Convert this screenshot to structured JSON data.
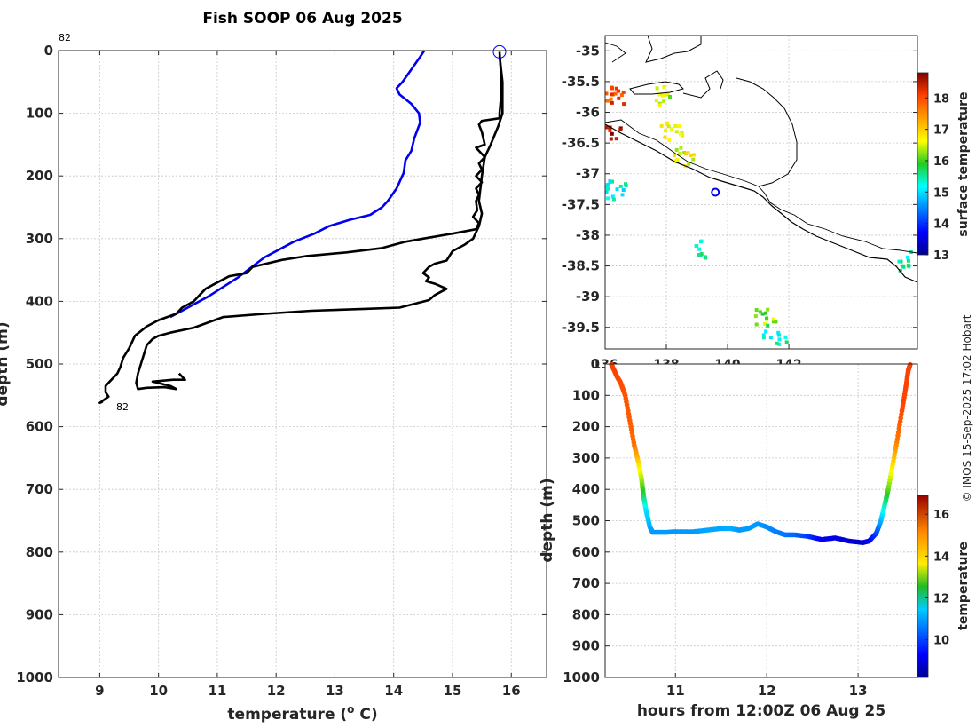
{
  "title": "Fish SOOP 06 Aug 2025",
  "credit": "© IMOS 15-Sep-2025 17:02 Hobart",
  "colors": {
    "blue_profile": "#0000ee",
    "black_profile": "#000000",
    "coast": "#000000",
    "marker": "#0000ee"
  },
  "chart_data": [
    {
      "type": "line",
      "name": "profile",
      "xlabel": "temperature (o C)",
      "xlabel_main": "temperature (",
      "xlabel_sup": "o",
      "xlabel_end": " C)",
      "ylabel": "depth (m)",
      "xlim": [
        8.3,
        16.6
      ],
      "ylim": [
        0,
        1000
      ],
      "y_reversed": true,
      "xticks": [
        9,
        10,
        11,
        12,
        13,
        14,
        15,
        16
      ],
      "yticks": [
        0,
        100,
        200,
        300,
        400,
        500,
        600,
        700,
        800,
        900,
        1000
      ],
      "annotations": [
        {
          "text": "82",
          "x": 8.3,
          "y": -18
        },
        {
          "text": "82",
          "x": 9.2,
          "y": 566
        }
      ],
      "start_marker": {
        "x": 15.8,
        "y": 2
      },
      "series": [
        {
          "name": "blue profile",
          "color": "#0000ee",
          "points": [
            [
              14.52,
              0
            ],
            [
              14.45,
              10
            ],
            [
              14.3,
              30
            ],
            [
              14.15,
              50
            ],
            [
              14.05,
              60
            ],
            [
              14.1,
              70
            ],
            [
              14.3,
              85
            ],
            [
              14.43,
              100
            ],
            [
              14.45,
              115
            ],
            [
              14.35,
              140
            ],
            [
              14.3,
              160
            ],
            [
              14.2,
              175
            ],
            [
              14.17,
              195
            ],
            [
              14.05,
              220
            ],
            [
              13.9,
              240
            ],
            [
              13.8,
              250
            ],
            [
              13.6,
              262
            ],
            [
              13.25,
              270
            ],
            [
              12.9,
              280
            ],
            [
              12.65,
              292
            ],
            [
              12.3,
              305
            ],
            [
              11.8,
              330
            ],
            [
              11.35,
              362
            ],
            [
              10.85,
              392
            ],
            [
              10.2,
              425
            ]
          ]
        },
        {
          "name": "black profile",
          "color": "#000000",
          "points": [
            [
              15.8,
              2
            ],
            [
              15.82,
              30
            ],
            [
              15.82,
              80
            ],
            [
              15.8,
              100
            ],
            [
              15.8,
              108
            ],
            [
              15.5,
              112
            ],
            [
              15.45,
              118
            ],
            [
              15.5,
              130
            ],
            [
              15.55,
              150
            ],
            [
              15.4,
              155
            ],
            [
              15.55,
              170
            ],
            [
              15.45,
              180
            ],
            [
              15.5,
              190
            ],
            [
              15.4,
              200
            ],
            [
              15.5,
              210
            ],
            [
              15.4,
              220
            ],
            [
              15.45,
              230
            ],
            [
              15.4,
              240
            ],
            [
              15.42,
              255
            ],
            [
              15.35,
              265
            ],
            [
              15.45,
              275
            ],
            [
              15.4,
              285
            ],
            [
              15.0,
              292
            ],
            [
              14.5,
              300
            ],
            [
              14.2,
              305
            ],
            [
              13.8,
              315
            ],
            [
              13.2,
              322
            ],
            [
              12.5,
              328
            ],
            [
              12.1,
              334
            ],
            [
              11.6,
              345
            ],
            [
              11.5,
              355
            ],
            [
              11.2,
              360
            ],
            [
              11.0,
              370
            ],
            [
              10.8,
              380
            ],
            [
              10.7,
              390
            ],
            [
              10.6,
              400
            ],
            [
              10.4,
              410
            ],
            [
              10.3,
              420
            ],
            [
              10.0,
              430
            ],
            [
              9.8,
              440
            ],
            [
              9.6,
              455
            ],
            [
              9.55,
              465
            ],
            [
              9.5,
              475
            ],
            [
              9.4,
              490
            ],
            [
              9.35,
              505
            ],
            [
              9.3,
              515
            ],
            [
              9.2,
              525
            ],
            [
              9.1,
              535
            ],
            [
              9.1,
              545
            ],
            [
              9.15,
              552
            ],
            [
              9.0,
              562
            ],
            [
              9.05,
              560
            ]
          ]
        },
        {
          "name": "black profile 2",
          "color": "#000000",
          "points": [
            [
              15.8,
              8
            ],
            [
              15.85,
              50
            ],
            [
              15.85,
              100
            ],
            [
              15.78,
              120
            ],
            [
              15.65,
              150
            ],
            [
              15.55,
              170
            ],
            [
              15.5,
              200
            ],
            [
              15.45,
              240
            ],
            [
              15.5,
              260
            ],
            [
              15.45,
              280
            ],
            [
              15.35,
              300
            ],
            [
              15.2,
              310
            ],
            [
              15.0,
              320
            ],
            [
              14.9,
              335
            ],
            [
              14.7,
              340
            ],
            [
              14.6,
              345
            ],
            [
              14.5,
              355
            ],
            [
              14.6,
              362
            ],
            [
              14.55,
              368
            ],
            [
              14.7,
              372
            ],
            [
              14.9,
              380
            ],
            [
              14.7,
              390
            ],
            [
              14.6,
              398
            ],
            [
              14.1,
              410
            ],
            [
              13.5,
              412
            ],
            [
              12.6,
              415
            ],
            [
              11.8,
              420
            ],
            [
              11.1,
              425
            ],
            [
              10.6,
              442
            ],
            [
              10.2,
              450
            ],
            [
              10.0,
              455
            ],
            [
              9.9,
              460
            ],
            [
              9.8,
              470
            ],
            [
              9.75,
              485
            ],
            [
              9.7,
              500
            ],
            [
              9.65,
              515
            ],
            [
              9.62,
              530
            ],
            [
              9.65,
              540
            ],
            [
              9.8,
              538
            ],
            [
              10.1,
              537
            ],
            [
              10.3,
              540
            ],
            [
              10.2,
              535
            ],
            [
              9.9,
              528
            ],
            [
              10.25,
              525
            ],
            [
              10.45,
              525
            ],
            [
              10.35,
              515
            ]
          ]
        }
      ]
    },
    {
      "type": "heatmap",
      "name": "surface temperature map",
      "colorbar_label": "surface temperature",
      "colorbar_range": [
        13,
        18.8
      ],
      "colorbar_ticks": [
        13,
        14,
        15,
        16,
        17,
        18
      ],
      "xlim": [
        136,
        146.2
      ],
      "ylim": [
        -39.85,
        -34.75
      ],
      "xticks": [
        136,
        138,
        140,
        142
      ],
      "xtick_labels": [
        "136",
        "138",
        "140",
        "142"
      ],
      "yticks": [
        -35,
        -35.5,
        -36,
        -36.5,
        -37,
        -37.5,
        -38,
        -38.5,
        -39,
        -39.5
      ],
      "ytick_labels": [
        "-35",
        "-35.5",
        "-36",
        "-36.5",
        "-37",
        "-37.5",
        "-38",
        "-38.5",
        "-39",
        "-39.5"
      ],
      "marker": {
        "lon": 139.6,
        "lat": -37.3
      },
      "patches": [
        {
          "lon": 136.1,
          "lat": -36.35,
          "value": 18.6
        },
        {
          "lon": 136.2,
          "lat": -35.7,
          "value": 18.0
        },
        {
          "lon": 136.35,
          "lat": -37.25,
          "value": 15.3
        },
        {
          "lon": 137.7,
          "lat": -35.7,
          "value": 16.4
        },
        {
          "lon": 138.1,
          "lat": -36.3,
          "value": 16.8
        },
        {
          "lon": 138.5,
          "lat": -36.7,
          "value": 16.6
        },
        {
          "lon": 141.2,
          "lat": -39.3,
          "value": 16.2
        },
        {
          "lon": 141.5,
          "lat": -39.6,
          "value": 15.4
        },
        {
          "lon": 139.2,
          "lat": -38.2,
          "value": 15.6
        },
        {
          "lon": 145.9,
          "lat": -38.4,
          "value": 15.5
        }
      ]
    },
    {
      "type": "scatter",
      "name": "depth vs time",
      "xlabel": "hours from 12:00Z 06 Aug 25",
      "ylabel": "depth (m)",
      "colorbar_label": "temperature",
      "colorbar_range": [
        8.2,
        16.9
      ],
      "colorbar_ticks": [
        10,
        12,
        14,
        16
      ],
      "xlim": [
        10.23,
        13.65
      ],
      "ylim": [
        0,
        1000
      ],
      "y_reversed": true,
      "xticks": [
        11,
        12,
        13
      ],
      "yticks": [
        0,
        100,
        200,
        300,
        400,
        500,
        600,
        700,
        800,
        900,
        1000
      ],
      "ytick_labels": [
        "0",
        "100",
        "200",
        "300",
        "400",
        "500",
        "600",
        "700",
        "800",
        "900",
        "1000"
      ],
      "points": [
        [
          10.3,
          2,
          15.8
        ],
        [
          10.36,
          40,
          15.8
        ],
        [
          10.4,
          60,
          15.7
        ],
        [
          10.45,
          100,
          15.6
        ],
        [
          10.5,
          180,
          15.5
        ],
        [
          10.55,
          260,
          15.3
        ],
        [
          10.6,
          320,
          14.0
        ],
        [
          10.63,
          370,
          13.2
        ],
        [
          10.65,
          420,
          12.3
        ],
        [
          10.68,
          470,
          11.2
        ],
        [
          10.72,
          520,
          10.8
        ],
        [
          10.75,
          537,
          10.6
        ],
        [
          10.9,
          537,
          10.6
        ],
        [
          11.0,
          535,
          10.6
        ],
        [
          11.2,
          535,
          10.6
        ],
        [
          11.35,
          530,
          10.7
        ],
        [
          11.5,
          525,
          10.7
        ],
        [
          11.6,
          525,
          10.8
        ],
        [
          11.7,
          530,
          10.6
        ],
        [
          11.8,
          525,
          10.6
        ],
        [
          11.9,
          510,
          10.6
        ],
        [
          12.0,
          520,
          10.5
        ],
        [
          12.1,
          535,
          10.4
        ],
        [
          12.2,
          545,
          10.3
        ],
        [
          12.3,
          545,
          10.2
        ],
        [
          12.45,
          550,
          9.8
        ],
        [
          12.6,
          560,
          9.2
        ],
        [
          12.75,
          555,
          9.0
        ],
        [
          12.9,
          565,
          8.9
        ],
        [
          13.05,
          570,
          8.8
        ],
        [
          13.12,
          565,
          9.2
        ],
        [
          13.2,
          540,
          9.8
        ],
        [
          13.25,
          500,
          10.8
        ],
        [
          13.3,
          440,
          12.0
        ],
        [
          13.33,
          400,
          12.8
        ],
        [
          13.38,
          320,
          14.0
        ],
        [
          13.43,
          240,
          15.2
        ],
        [
          13.48,
          150,
          15.7
        ],
        [
          13.52,
          80,
          15.8
        ],
        [
          13.55,
          20,
          15.8
        ],
        [
          13.57,
          2,
          15.8
        ]
      ]
    }
  ]
}
